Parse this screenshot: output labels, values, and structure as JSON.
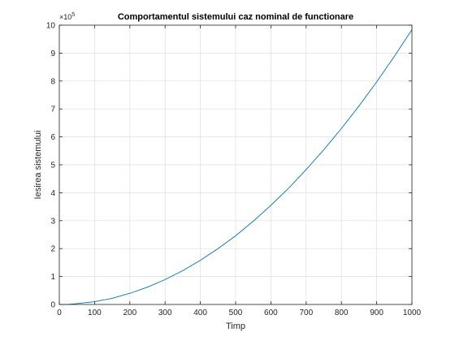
{
  "chart_data": {
    "type": "line",
    "title": "Comportamentul sistemului caz nominal de functionare",
    "xlabel": "Timp",
    "ylabel": "Iesirea sistemului",
    "xlim": [
      0,
      1000
    ],
    "ylim": [
      0,
      10
    ],
    "y_multiplier": {
      "base": "×10",
      "exponent": "5"
    },
    "xticks": [
      0,
      100,
      200,
      300,
      400,
      500,
      600,
      700,
      800,
      900,
      1000
    ],
    "yticks": [
      0,
      1,
      2,
      3,
      4,
      5,
      6,
      7,
      8,
      9,
      10
    ],
    "grid": true,
    "series": [
      {
        "color": "#0072BD",
        "x": [
          0,
          25,
          50,
          100,
          150,
          200,
          250,
          300,
          350,
          400,
          450,
          500,
          550,
          600,
          650,
          700,
          750,
          800,
          850,
          900,
          950,
          1000
        ],
        "y": [
          0,
          0.0,
          0.03,
          0.1,
          0.22,
          0.4,
          0.62,
          0.89,
          1.21,
          1.58,
          2.0,
          2.46,
          2.98,
          3.55,
          4.16,
          4.83,
          5.54,
          6.3,
          7.11,
          7.97,
          8.88,
          9.84
        ]
      }
    ]
  }
}
